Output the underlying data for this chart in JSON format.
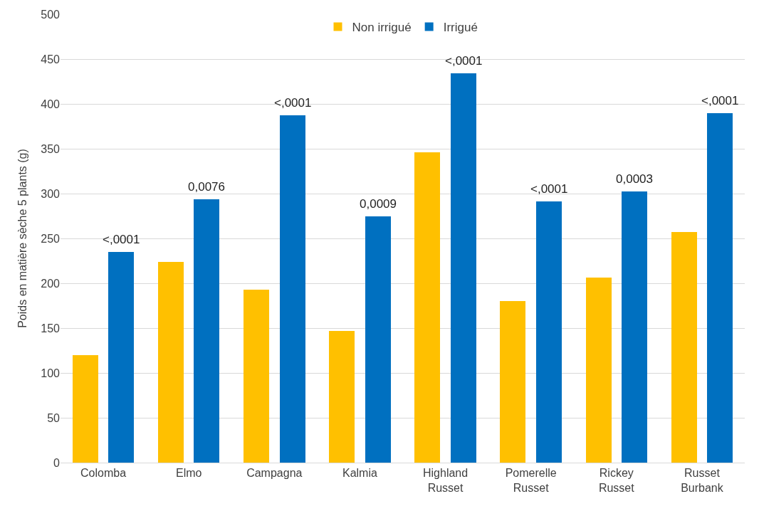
{
  "chart_data": {
    "type": "bar",
    "ylabel": "Poids en matière sèche 5 plants (g)",
    "categories": [
      "Colomba",
      "Elmo",
      "Campagna",
      "Kalmia",
      "Highland Russet",
      "Pomerelle Russet",
      "Rickey Russet",
      "Russet Burbank"
    ],
    "series": [
      {
        "name": "Non irrigué",
        "color": "#ffc000",
        "values": [
          120,
          224,
          193,
          147,
          346,
          180,
          206,
          257
        ]
      },
      {
        "name": "Irrigué",
        "color": "#0070c0",
        "values": [
          235,
          294,
          387,
          275,
          434,
          291,
          302,
          390
        ]
      }
    ],
    "annotations": [
      "<,0001",
      "0,0076",
      "<,0001",
      "0,0009",
      "<,0001",
      "<,0001",
      "0,0003",
      "<,0001"
    ],
    "ylim": [
      0,
      500
    ],
    "yticks": [
      0,
      50,
      100,
      150,
      200,
      250,
      300,
      350,
      400,
      450,
      500
    ],
    "grid": "y",
    "legend": "top"
  }
}
